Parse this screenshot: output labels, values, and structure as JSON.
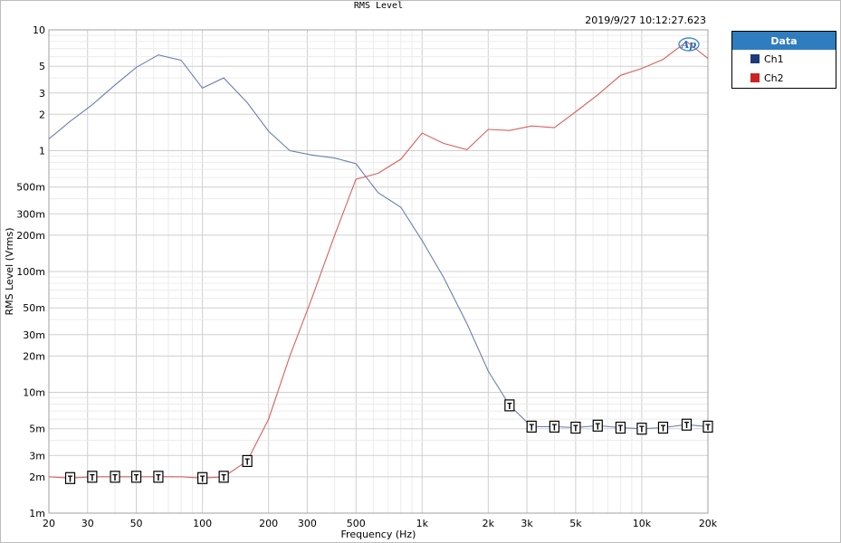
{
  "timestamp": "2019/9/27 10:12:27.623",
  "logo_text": "Ap",
  "chart_data": {
    "type": "line",
    "title": "RMS Level",
    "xlabel": "Frequency (Hz)",
    "ylabel": "RMS Level (Vrms)",
    "xscale": "log",
    "yscale": "log",
    "xlim": [
      20,
      20000
    ],
    "ylim": [
      0.001,
      10
    ],
    "grid": true,
    "legend": {
      "title": "Data",
      "placement": "right-outside"
    },
    "x_ticks": [
      {
        "v": 20,
        "label": "20"
      },
      {
        "v": 30,
        "label": "30"
      },
      {
        "v": 50,
        "label": "50"
      },
      {
        "v": 100,
        "label": "100"
      },
      {
        "v": 200,
        "label": "200"
      },
      {
        "v": 300,
        "label": "300"
      },
      {
        "v": 500,
        "label": "500"
      },
      {
        "v": 1000,
        "label": "1k"
      },
      {
        "v": 2000,
        "label": "2k"
      },
      {
        "v": 3000,
        "label": "3k"
      },
      {
        "v": 5000,
        "label": "5k"
      },
      {
        "v": 10000,
        "label": "10k"
      },
      {
        "v": 20000,
        "label": "20k"
      }
    ],
    "y_ticks": [
      {
        "v": 10,
        "label": "10"
      },
      {
        "v": 5,
        "label": "5"
      },
      {
        "v": 3,
        "label": "3"
      },
      {
        "v": 2,
        "label": "2"
      },
      {
        "v": 1,
        "label": "1"
      },
      {
        "v": 0.5,
        "label": "500m"
      },
      {
        "v": 0.3,
        "label": "300m"
      },
      {
        "v": 0.2,
        "label": "200m"
      },
      {
        "v": 0.1,
        "label": "100m"
      },
      {
        "v": 0.05,
        "label": "50m"
      },
      {
        "v": 0.03,
        "label": "30m"
      },
      {
        "v": 0.02,
        "label": "20m"
      },
      {
        "v": 0.01,
        "label": "10m"
      },
      {
        "v": 0.005,
        "label": "5m"
      },
      {
        "v": 0.003,
        "label": "3m"
      },
      {
        "v": 0.002,
        "label": "2m"
      },
      {
        "v": 0.001,
        "label": "1m"
      }
    ],
    "series": [
      {
        "name": "Ch1",
        "color": "#6b7fb3",
        "swatch_color": "#1f3a7a",
        "points": [
          [
            20,
            1.25
          ],
          [
            25,
            1.75
          ],
          [
            31.5,
            2.4
          ],
          [
            40,
            3.5
          ],
          [
            50,
            4.9
          ],
          [
            63,
            6.2
          ],
          [
            80,
            5.6
          ],
          [
            100,
            3.3
          ],
          [
            125,
            4.0
          ],
          [
            160,
            2.5
          ],
          [
            200,
            1.45
          ],
          [
            250,
            1.0
          ],
          [
            315,
            0.92
          ],
          [
            400,
            0.87
          ],
          [
            500,
            0.78
          ],
          [
            630,
            0.45
          ],
          [
            800,
            0.34
          ],
          [
            1000,
            0.18
          ],
          [
            1250,
            0.09
          ],
          [
            1600,
            0.037
          ],
          [
            2000,
            0.015
          ],
          [
            2500,
            0.0078
          ],
          [
            3150,
            0.0052
          ],
          [
            4000,
            0.0052
          ],
          [
            5000,
            0.0051
          ],
          [
            6300,
            0.0053
          ],
          [
            8000,
            0.0051
          ],
          [
            10000,
            0.005
          ],
          [
            12500,
            0.0051
          ],
          [
            16000,
            0.0054
          ],
          [
            20000,
            0.0052
          ]
        ],
        "markers": [
          [
            2500,
            0.0078
          ],
          [
            3150,
            0.0052
          ],
          [
            4000,
            0.0052
          ],
          [
            5000,
            0.0051
          ],
          [
            6300,
            0.0053
          ],
          [
            8000,
            0.0051
          ],
          [
            10000,
            0.005
          ],
          [
            12500,
            0.0051
          ],
          [
            16000,
            0.0054
          ],
          [
            20000,
            0.0052
          ]
        ]
      },
      {
        "name": "Ch2",
        "color": "#d9605e",
        "swatch_color": "#cc2222",
        "points": [
          [
            20,
            0.002
          ],
          [
            25,
            0.00195
          ],
          [
            31.5,
            0.002
          ],
          [
            40,
            0.002
          ],
          [
            50,
            0.002
          ],
          [
            63,
            0.002
          ],
          [
            80,
            0.002
          ],
          [
            100,
            0.00195
          ],
          [
            125,
            0.002
          ],
          [
            160,
            0.0027
          ],
          [
            200,
            0.006
          ],
          [
            250,
            0.02
          ],
          [
            315,
            0.06
          ],
          [
            400,
            0.2
          ],
          [
            500,
            0.58
          ],
          [
            630,
            0.65
          ],
          [
            800,
            0.85
          ],
          [
            1000,
            1.4
          ],
          [
            1250,
            1.15
          ],
          [
            1600,
            1.02
          ],
          [
            2000,
            1.5
          ],
          [
            2500,
            1.47
          ],
          [
            3150,
            1.6
          ],
          [
            4000,
            1.55
          ],
          [
            5000,
            2.1
          ],
          [
            6300,
            2.9
          ],
          [
            8000,
            4.2
          ],
          [
            10000,
            4.8
          ],
          [
            12500,
            5.7
          ],
          [
            16000,
            8.0
          ],
          [
            20000,
            5.8
          ]
        ],
        "markers": [
          [
            25,
            0.00195
          ],
          [
            31.5,
            0.002
          ],
          [
            40,
            0.002
          ],
          [
            50,
            0.002
          ],
          [
            63,
            0.002
          ],
          [
            100,
            0.00195
          ],
          [
            125,
            0.002
          ],
          [
            160,
            0.0027
          ]
        ]
      }
    ],
    "marker_label": "T"
  }
}
